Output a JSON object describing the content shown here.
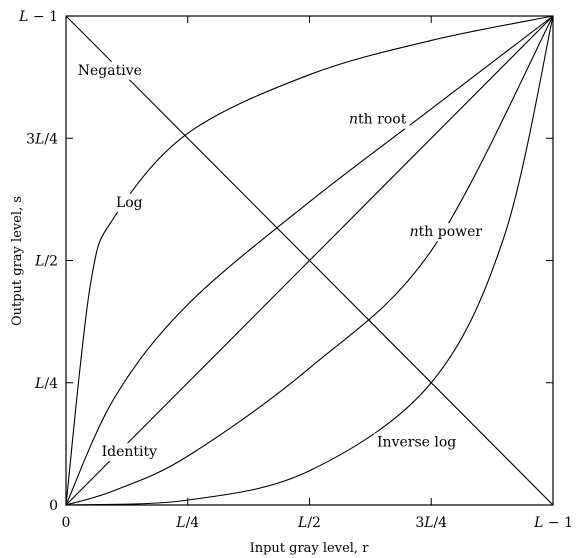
{
  "chart_data": {
    "type": "line",
    "title": "",
    "xlabel": "Input gray level, r",
    "ylabel": "Output gray level, s",
    "xlim": [
      0,
      1
    ],
    "ylim": [
      0,
      1
    ],
    "x_ticks": [
      {
        "value": 0,
        "label": "0"
      },
      {
        "value": 0.25,
        "label": "L/4"
      },
      {
        "value": 0.5,
        "label": "L/2"
      },
      {
        "value": 0.75,
        "label": "3L/4"
      },
      {
        "value": 1,
        "label": "L − 1"
      }
    ],
    "y_ticks": [
      {
        "value": 0,
        "label": "0"
      },
      {
        "value": 0.25,
        "label": "L/4"
      },
      {
        "value": 0.5,
        "label": "L/2"
      },
      {
        "value": 0.75,
        "label": "3L/4"
      },
      {
        "value": 1,
        "label": "L − 1"
      }
    ],
    "grid": false,
    "series": [
      {
        "name": "Negative",
        "x": [
          0,
          0.25,
          0.5,
          0.75,
          1
        ],
        "y": [
          1,
          0.75,
          0.5,
          0.25,
          0
        ],
        "label_at": [
          0.09,
          0.89
        ]
      },
      {
        "name": "Log",
        "x": [
          0,
          0.05,
          0.1,
          0.25,
          0.5,
          0.75,
          1
        ],
        "y": [
          0,
          0.45,
          0.59,
          0.76,
          0.88,
          0.95,
          1
        ],
        "label_at": [
          0.13,
          0.62
        ]
      },
      {
        "name": "nth root",
        "x": [
          0,
          0.1,
          0.25,
          0.5,
          0.75,
          1
        ],
        "y": [
          0,
          0.22,
          0.41,
          0.62,
          0.81,
          1
        ],
        "label_at": [
          0.64,
          0.79
        ]
      },
      {
        "name": "Identity",
        "x": [
          0,
          0.25,
          0.5,
          0.75,
          1
        ],
        "y": [
          0,
          0.25,
          0.5,
          0.75,
          1
        ],
        "label_at": [
          0.13,
          0.11
        ]
      },
      {
        "name": "nth power",
        "x": [
          0,
          0.1,
          0.25,
          0.5,
          0.75,
          1
        ],
        "y": [
          0,
          0.03,
          0.1,
          0.28,
          0.52,
          1
        ],
        "label_at": [
          0.78,
          0.56
        ]
      },
      {
        "name": "Inverse log",
        "x": [
          0,
          0.25,
          0.5,
          0.75,
          0.9,
          1
        ],
        "y": [
          0,
          0.01,
          0.07,
          0.25,
          0.55,
          1
        ],
        "label_at": [
          0.72,
          0.13
        ]
      }
    ]
  }
}
